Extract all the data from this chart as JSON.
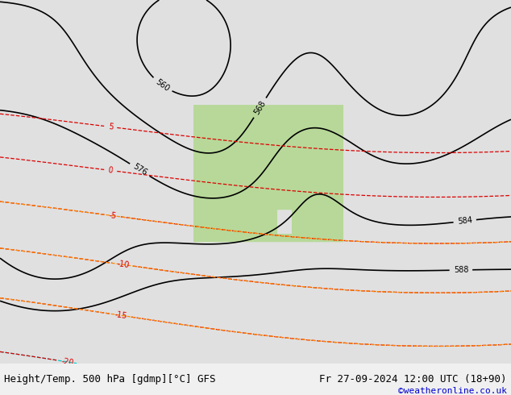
{
  "title_left": "Height/Temp. 500 hPa [gdmp][°C] GFS",
  "title_right": "Fr 27-09-2024 12:00 UTC (18+90)",
  "credit": "©weatheronline.co.uk",
  "bg_color": "#d0d0d0",
  "map_bg_color": "#e8e8e8",
  "land_color": "#c8d8b0",
  "australia_color": "#b8d898",
  "contour_black_color": "#000000",
  "contour_red_color": "#dd0000",
  "contour_orange_color": "#ff8800",
  "contour_cyan_color": "#00cccc",
  "contour_blue_color": "#0000cc",
  "bottom_bar_color": "#f0f0f0",
  "bottom_text_color": "#000000",
  "credit_color": "#0000cc",
  "figsize": [
    6.34,
    4.9
  ],
  "dpi": 100,
  "font_size_bottom": 9,
  "font_size_credit": 8
}
